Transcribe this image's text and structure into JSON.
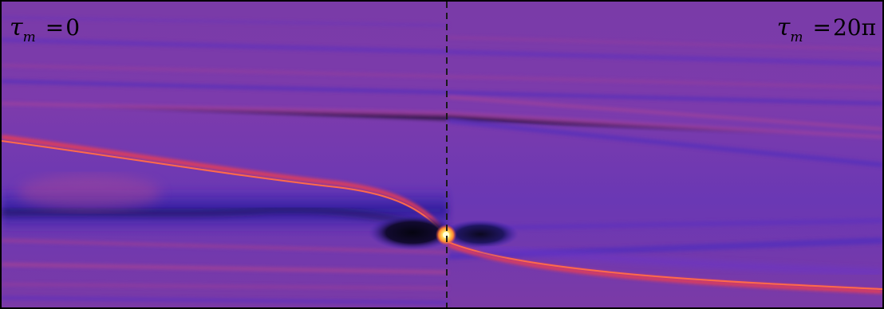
{
  "figure": {
    "left_label": {
      "symbol": "τ",
      "subscript": "m",
      "equals": "=",
      "value": "0"
    },
    "right_label": {
      "symbol": "τ",
      "subscript": "m",
      "equals": "=",
      "value": "20π"
    }
  },
  "colors": {
    "background_purple": "#7a3bb1",
    "dark_blue": "#3a22b8",
    "deep_black": "#0b0820",
    "red_orange": "#ef3f52",
    "pink": "#c84d8e",
    "hot_yellow": "#fff27a",
    "divider": "#1a1a1a"
  }
}
